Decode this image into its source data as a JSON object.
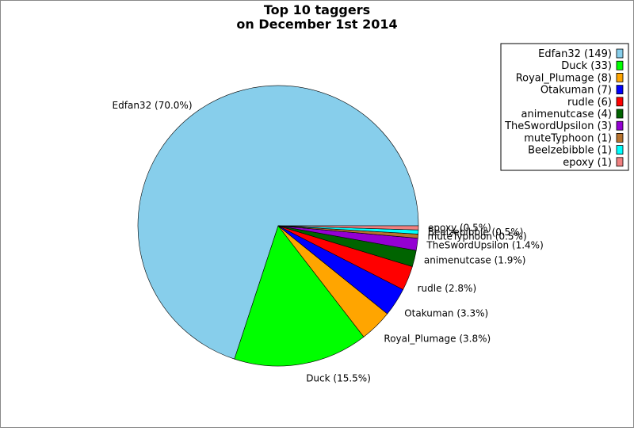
{
  "chart_data": {
    "type": "pie",
    "title": "Top 10 taggers",
    "subtitle": "on December 1st 2014",
    "legend_position": "top-right",
    "slices": [
      {
        "name": "Edfan32",
        "count": 149,
        "percent": "70.0%",
        "color": "#87ceeb"
      },
      {
        "name": "Duck",
        "count": 33,
        "percent": "15.5%",
        "color": "#00ff00"
      },
      {
        "name": "Royal_Plumage",
        "count": 8,
        "percent": "3.8%",
        "color": "#ffa500"
      },
      {
        "name": "Otakuman",
        "count": 7,
        "percent": "3.3%",
        "color": "#0000ff"
      },
      {
        "name": "rudle",
        "count": 6,
        "percent": "2.8%",
        "color": "#ff0000"
      },
      {
        "name": "animenutcase",
        "count": 4,
        "percent": "1.9%",
        "color": "#006400"
      },
      {
        "name": "TheSwordUpsilon",
        "count": 3,
        "percent": "1.4%",
        "color": "#9400d3"
      },
      {
        "name": "muteTyphoon",
        "count": 1,
        "percent": "0.5%",
        "color": "#b8732e"
      },
      {
        "name": "Beelzebibble",
        "count": 1,
        "percent": "0.5%",
        "color": "#00ffff"
      },
      {
        "name": "epoxy",
        "count": 1,
        "percent": "0.5%",
        "color": "#f08080"
      }
    ]
  }
}
